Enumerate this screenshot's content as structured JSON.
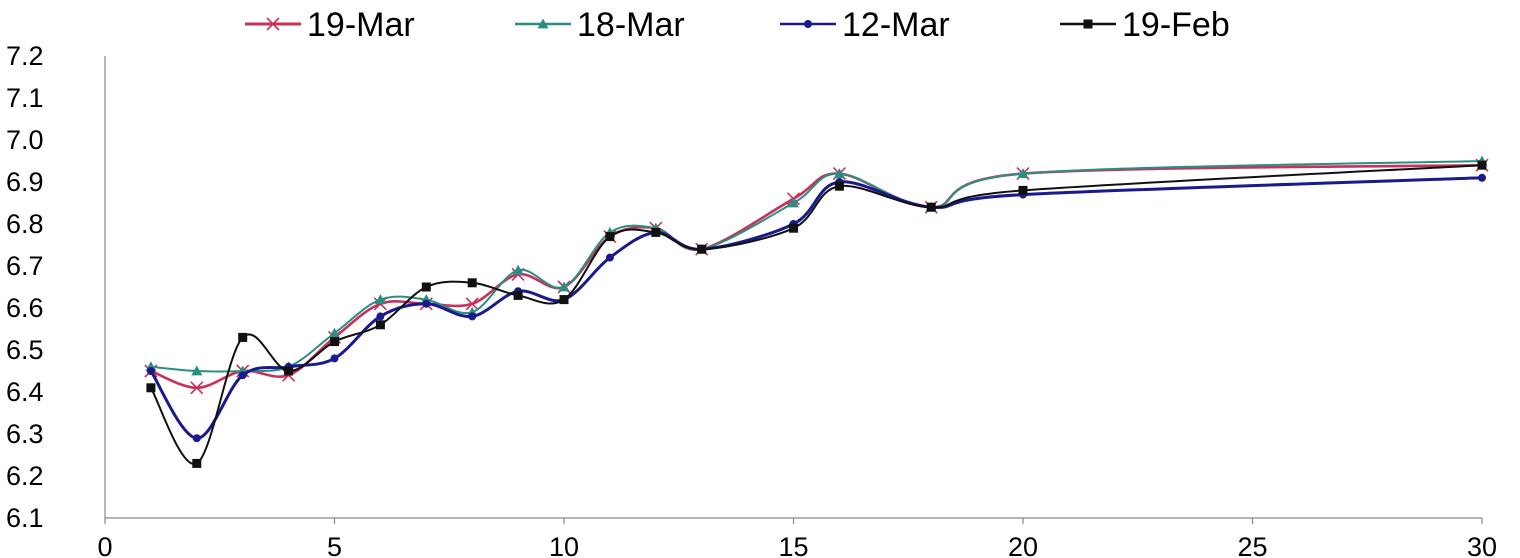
{
  "chart_data": {
    "type": "line",
    "title": "",
    "xlabel": "",
    "ylabel": "",
    "xlim": [
      0,
      30
    ],
    "ylim": [
      6.1,
      7.2
    ],
    "x_ticks": [
      0,
      5,
      10,
      15,
      20,
      25,
      30
    ],
    "x_tick_labels": [
      "0",
      "5",
      "10",
      "15",
      "20",
      "25",
      "30"
    ],
    "y_ticks": [
      6.1,
      6.2,
      6.3,
      6.4,
      6.5,
      6.6,
      6.7,
      6.8,
      6.9,
      7.0,
      7.1,
      7.2
    ],
    "y_tick_labels": [
      "6.1",
      "6.2",
      "6.3",
      "6.4",
      "6.5",
      "6.6",
      "6.7",
      "6.8",
      "6.9",
      "7.0",
      "7.1",
      "7.2"
    ],
    "grid": false,
    "smooth": true,
    "legend_position": "top",
    "x": [
      1,
      2,
      3,
      4,
      5,
      6,
      7,
      8,
      9,
      10,
      11,
      12,
      13,
      15,
      16,
      18,
      20,
      30
    ],
    "series": [
      {
        "name": "19-Mar",
        "color": "#c8325a",
        "marker": "x",
        "values": [
          6.45,
          6.41,
          6.45,
          6.44,
          6.53,
          6.61,
          6.61,
          6.61,
          6.68,
          6.65,
          6.77,
          6.79,
          6.74,
          6.86,
          6.92,
          6.84,
          6.92,
          6.94
        ]
      },
      {
        "name": "18-Mar",
        "color": "#2a8f82",
        "marker": "triangle",
        "values": [
          6.46,
          6.45,
          6.45,
          6.46,
          6.54,
          6.62,
          6.62,
          6.59,
          6.69,
          6.65,
          6.78,
          6.79,
          6.74,
          6.85,
          6.92,
          6.84,
          6.92,
          6.95
        ]
      },
      {
        "name": "12-Mar",
        "color": "#1a1a8c",
        "marker": "circle",
        "values": [
          6.45,
          6.29,
          6.44,
          6.46,
          6.48,
          6.58,
          6.61,
          6.58,
          6.64,
          6.62,
          6.72,
          6.78,
          6.74,
          6.8,
          6.9,
          6.84,
          6.87,
          6.91
        ]
      },
      {
        "name": "19-Feb",
        "color": "#111111",
        "marker": "square",
        "values": [
          6.41,
          6.23,
          6.53,
          6.45,
          6.52,
          6.56,
          6.65,
          6.66,
          6.63,
          6.62,
          6.77,
          6.78,
          6.74,
          6.79,
          6.89,
          6.84,
          6.88,
          6.94
        ]
      }
    ]
  }
}
